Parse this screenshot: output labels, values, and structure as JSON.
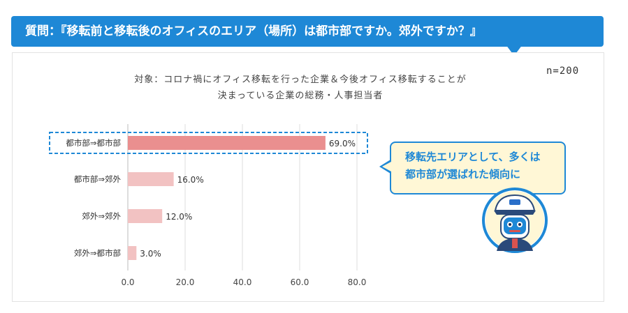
{
  "question": "質問：『移転前と移転後のオフィスのエリア（場所）は都市部ですか。郊外ですか？』",
  "subtitle_line1": "対象：コロナ禍にオフィス移転を行った企業＆今後オフィス移転することが",
  "subtitle_line2": "決まっている企業の総務・人事担当者",
  "sample_size": "n=200",
  "callout": {
    "line1": "移転先エリアとして、多くは",
    "line2": "都市部が選ばれた傾向に"
  },
  "colors": {
    "header_blue": "#1e88d6",
    "bar_highlight": "#ea8f8f",
    "bar_normal": "#f2c2c2",
    "callout_bg": "#fff7d6"
  },
  "chart_data": {
    "type": "bar",
    "orientation": "horizontal",
    "categories": [
      "都市部⇒都市部",
      "都市部⇒郊外",
      "郊外⇒郊外",
      "郊外⇒都市部"
    ],
    "values": [
      69.0,
      16.0,
      12.0,
      3.0
    ],
    "value_labels": [
      "69.0%",
      "16.0%",
      "12.0%",
      "3.0%"
    ],
    "xlim": [
      0,
      80
    ],
    "xticks": [
      "0.0",
      "20.0",
      "40.0",
      "60.0",
      "80.0"
    ],
    "grid": true,
    "highlighted_category": "都市部⇒都市部",
    "unit": "%"
  }
}
